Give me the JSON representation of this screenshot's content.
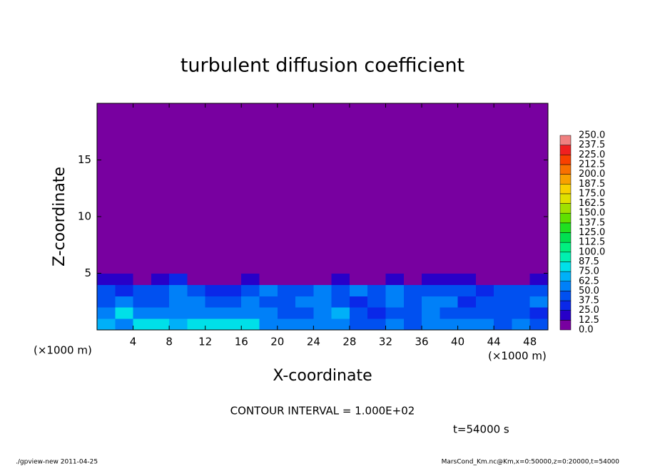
{
  "chart_data": {
    "type": "heatmap",
    "title": "turbulent diffusion coefficient",
    "xlabel": "X-coordinate",
    "ylabel": "Z-coordinate",
    "xunit": "(×1000 m)",
    "yunit": "(×1000 m)",
    "annotation": "CONTOUR INTERVAL = 1.000E+02",
    "time_label": "t=54000 s",
    "footer_left": "./gpview-new  2011-04-25",
    "footer_right": "MarsCond_Km.nc@Km,x=0:50000,z=0:20000,t=54000",
    "xlim": [
      0,
      50
    ],
    "ylim": [
      0,
      20
    ],
    "xticks": [
      4,
      8,
      12,
      16,
      20,
      24,
      28,
      32,
      36,
      40,
      44,
      48
    ],
    "yticks": [
      5,
      10,
      15
    ],
    "xbins": [
      0,
      2,
      4,
      6,
      8,
      10,
      12,
      14,
      16,
      18,
      20,
      22,
      24,
      26,
      28,
      30,
      32,
      34,
      36,
      38,
      40,
      42,
      44,
      46,
      48,
      50
    ],
    "zbins": [
      0,
      1,
      2,
      3,
      4,
      5,
      20
    ],
    "values": [
      [
        70,
        60,
        75,
        80,
        70,
        75,
        80,
        85,
        80,
        60,
        50,
        60,
        55,
        50,
        45,
        40,
        50,
        45,
        55,
        60,
        55,
        50,
        45,
        50,
        40
      ],
      [
        55,
        75,
        60,
        50,
        55,
        60,
        60,
        55,
        60,
        50,
        45,
        40,
        55,
        70,
        45,
        35,
        40,
        45,
        50,
        45,
        40,
        45,
        40,
        45,
        35
      ],
      [
        45,
        50,
        40,
        45,
        50,
        55,
        45,
        40,
        55,
        45,
        40,
        55,
        60,
        40,
        30,
        40,
        55,
        45,
        50,
        55,
        35,
        40,
        45,
        40,
        50
      ],
      [
        40,
        35,
        45,
        40,
        55,
        45,
        30,
        35,
        45,
        50,
        45,
        40,
        50,
        45,
        50,
        45,
        50,
        40,
        45,
        40,
        45,
        35,
        40,
        45,
        40
      ],
      [
        20,
        15,
        10,
        20,
        25,
        10,
        5,
        5,
        15,
        10,
        5,
        10,
        10,
        20,
        10,
        5,
        15,
        10,
        15,
        20,
        15,
        10,
        5,
        10,
        15
      ],
      [
        0,
        0,
        0,
        0,
        0,
        0,
        0,
        0,
        0,
        0,
        0,
        0,
        0,
        0,
        0,
        0,
        0,
        0,
        0,
        0,
        0,
        0,
        0,
        0,
        0
      ]
    ],
    "levels": [
      {
        "value": 0,
        "label": "0.0"
      },
      {
        "value": 12.5,
        "label": "12.5"
      },
      {
        "value": 25,
        "label": "25.0"
      },
      {
        "value": 37.5,
        "label": "37.5"
      },
      {
        "value": 50,
        "label": "50.0"
      },
      {
        "value": 62.5,
        "label": "62.5"
      },
      {
        "value": 75,
        "label": "75.0"
      },
      {
        "value": 87.5,
        "label": "87.5"
      },
      {
        "value": 100,
        "label": "100.0"
      },
      {
        "value": 112.5,
        "label": "112.5"
      },
      {
        "value": 125,
        "label": "125.0"
      },
      {
        "value": 137.5,
        "label": "137.5"
      },
      {
        "value": 150,
        "label": "150.0"
      },
      {
        "value": 162.5,
        "label": "162.5"
      },
      {
        "value": 175,
        "label": "175.0"
      },
      {
        "value": 187.5,
        "label": "187.5"
      },
      {
        "value": 200,
        "label": "200.0"
      },
      {
        "value": 212.5,
        "label": "212.5"
      },
      {
        "value": 225,
        "label": "225.0"
      },
      {
        "value": 237.5,
        "label": "237.5"
      },
      {
        "value": 250,
        "label": "250.0"
      }
    ],
    "colors": [
      "#7800a0",
      "#2800c8",
      "#0a28e8",
      "#0050f0",
      "#0080f8",
      "#00b0f8",
      "#00e0e8",
      "#00f0b0",
      "#00f080",
      "#00e050",
      "#20e020",
      "#60e000",
      "#a0e000",
      "#e0e000",
      "#f8d000",
      "#f8a000",
      "#f87000",
      "#f84000",
      "#f02020",
      "#f08080"
    ]
  }
}
